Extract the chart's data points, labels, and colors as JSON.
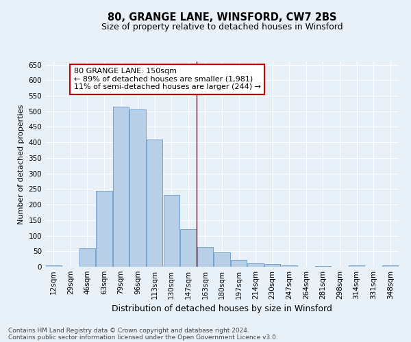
{
  "title": "80, GRANGE LANE, WINSFORD, CW7 2BS",
  "subtitle": "Size of property relative to detached houses in Winsford",
  "xlabel": "Distribution of detached houses by size in Winsford",
  "ylabel": "Number of detached properties",
  "categories": [
    "12sqm",
    "29sqm",
    "46sqm",
    "63sqm",
    "79sqm",
    "96sqm",
    "113sqm",
    "130sqm",
    "147sqm",
    "163sqm",
    "180sqm",
    "197sqm",
    "214sqm",
    "230sqm",
    "247sqm",
    "264sqm",
    "281sqm",
    "298sqm",
    "314sqm",
    "331sqm",
    "348sqm"
  ],
  "values": [
    4,
    0,
    60,
    245,
    515,
    505,
    410,
    230,
    120,
    63,
    47,
    22,
    10,
    8,
    5,
    0,
    2,
    0,
    5,
    0,
    5
  ],
  "bar_color": "#b8cfe8",
  "bar_edge_color": "#6699cc",
  "vline_x_index": 8.5,
  "vline_color": "#aa0000",
  "annotation_text": "80 GRANGE LANE: 150sqm\n← 89% of detached houses are smaller (1,981)\n11% of semi-detached houses are larger (244) →",
  "annotation_box_color": "#ffffff",
  "annotation_box_edge_color": "#cc0000",
  "ylim": [
    0,
    660
  ],
  "yticks": [
    0,
    50,
    100,
    150,
    200,
    250,
    300,
    350,
    400,
    450,
    500,
    550,
    600,
    650
  ],
  "footer1": "Contains HM Land Registry data © Crown copyright and database right 2024.",
  "footer2": "Contains public sector information licensed under the Open Government Licence v3.0.",
  "background_color": "#e8f0f8",
  "grid_color": "#ffffff",
  "title_fontsize": 10.5,
  "subtitle_fontsize": 9,
  "ylabel_fontsize": 8,
  "xlabel_fontsize": 9,
  "tick_fontsize": 7.5,
  "annotation_fontsize": 8,
  "footer_fontsize": 6.5
}
